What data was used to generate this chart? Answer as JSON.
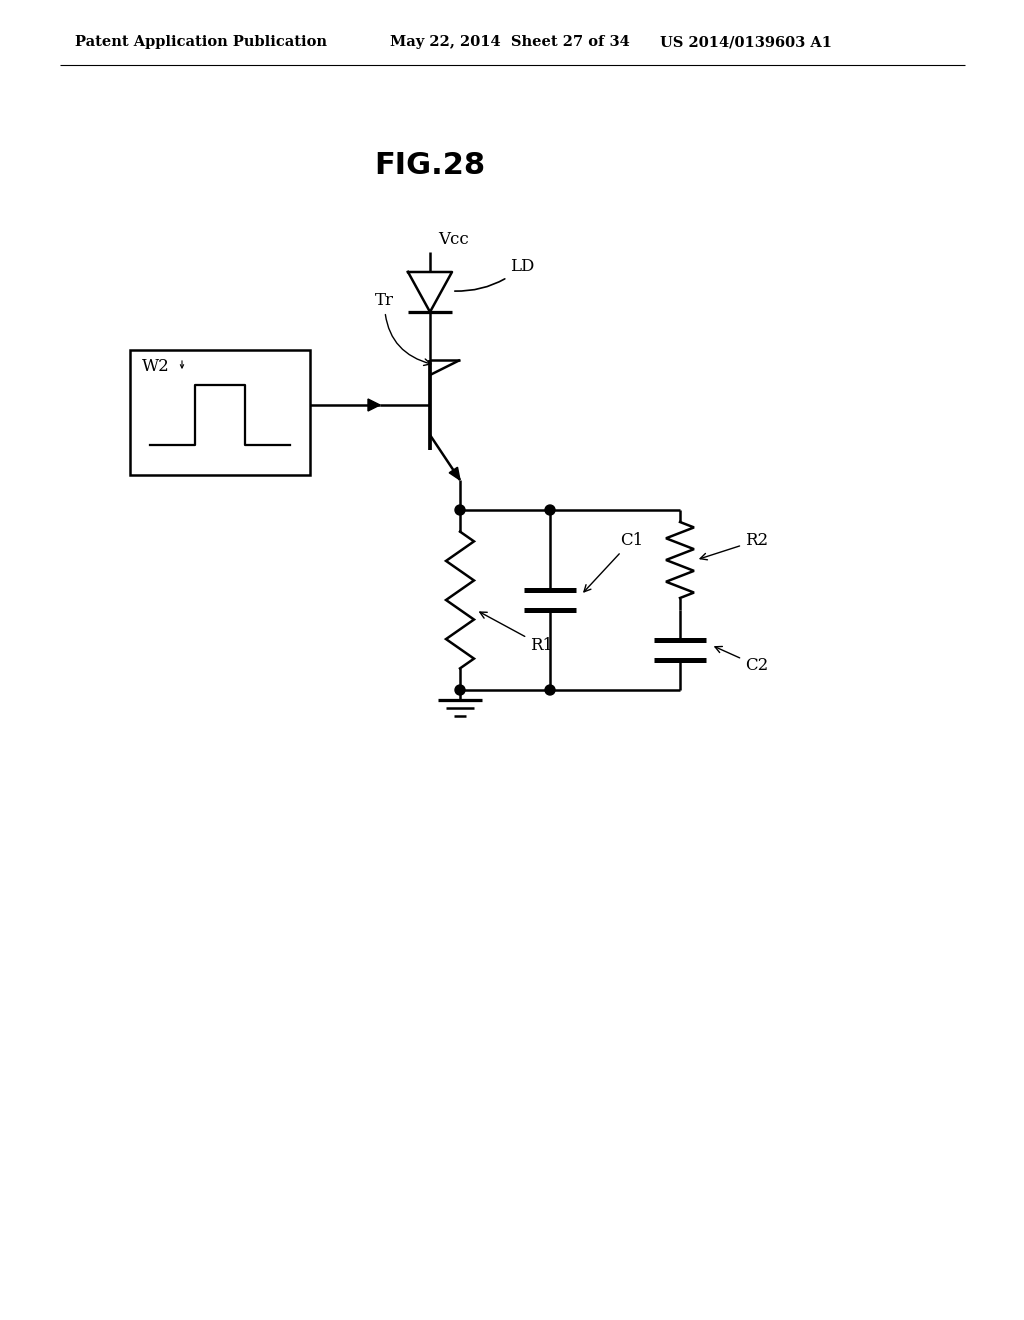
{
  "title": "FIG.28",
  "header_left": "Patent Application Publication",
  "header_mid": "May 22, 2014  Sheet 27 of 34",
  "header_right": "US 2014/0139603 A1",
  "bg_color": "#ffffff",
  "line_color": "#000000",
  "fig_label_fontsize": 22,
  "header_fontsize": 10.5,
  "component_fontsize": 12,
  "vcc_label": "Vcc",
  "ld_label": "LD",
  "tr_label": "Tr",
  "w2_label": "W2",
  "r1_label": "R1",
  "r2_label": "R2",
  "c1_label": "C1",
  "c2_label": "C2"
}
